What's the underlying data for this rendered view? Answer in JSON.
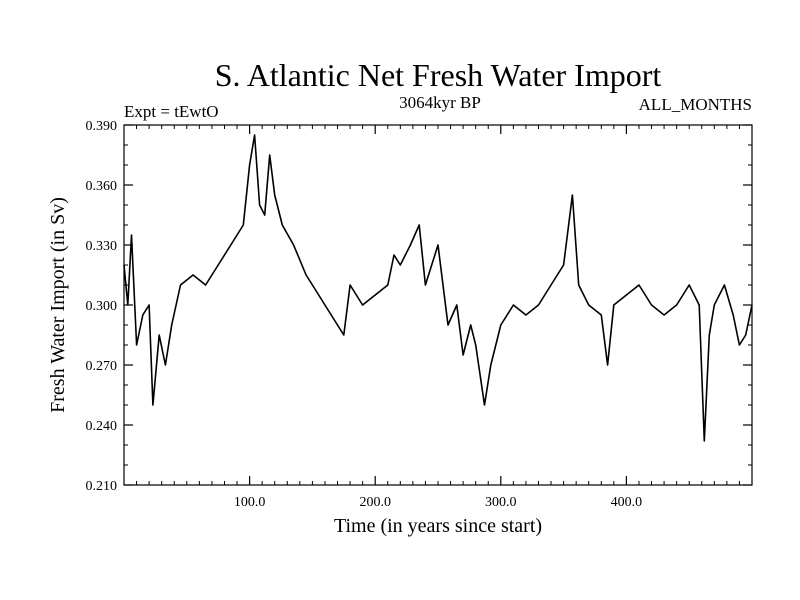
{
  "chart_data": {
    "type": "line",
    "title": "S. Atlantic Net Fresh Water Import",
    "subtitle_left": "Expt = tEwtO",
    "subtitle_center": "3064kyr BP",
    "subtitle_right": "ALL_MONTHS",
    "xlabel": "Time (in years since start)",
    "ylabel": "Fresh Water Import (in Sv)",
    "xlim": [
      0,
      500
    ],
    "ylim": [
      0.21,
      0.39
    ],
    "x_ticks": [
      100,
      200,
      300,
      400
    ],
    "x_tick_labels": [
      "100.0",
      "200.0",
      "300.0",
      "400.0"
    ],
    "y_ticks": [
      0.21,
      0.24,
      0.27,
      0.3,
      0.33,
      0.36,
      0.39
    ],
    "y_tick_labels": [
      "0.210",
      "0.240",
      "0.270",
      "0.300",
      "0.330",
      "0.360",
      "0.390"
    ],
    "series": [
      {
        "name": "S. Atlantic Net Fresh Water Import",
        "x": [
          0,
          3,
          6,
          10,
          15,
          20,
          23,
          28,
          33,
          38,
          45,
          55,
          65,
          75,
          85,
          95,
          100,
          104,
          108,
          112,
          116,
          120,
          126,
          135,
          145,
          155,
          165,
          175,
          180,
          190,
          200,
          210,
          215,
          220,
          228,
          235,
          240,
          245,
          250,
          258,
          265,
          270,
          276,
          280,
          287,
          292,
          300,
          310,
          320,
          330,
          340,
          350,
          357,
          362,
          370,
          380,
          385,
          390,
          400,
          410,
          420,
          430,
          440,
          450,
          458,
          462,
          466,
          470,
          478,
          485,
          490,
          495,
          500
        ],
        "values": [
          0.32,
          0.3,
          0.335,
          0.28,
          0.295,
          0.3,
          0.25,
          0.285,
          0.27,
          0.29,
          0.31,
          0.315,
          0.31,
          0.32,
          0.33,
          0.34,
          0.37,
          0.385,
          0.35,
          0.345,
          0.375,
          0.355,
          0.34,
          0.33,
          0.315,
          0.305,
          0.295,
          0.285,
          0.31,
          0.3,
          0.305,
          0.31,
          0.325,
          0.32,
          0.33,
          0.34,
          0.31,
          0.32,
          0.33,
          0.29,
          0.3,
          0.275,
          0.29,
          0.28,
          0.25,
          0.27,
          0.29,
          0.3,
          0.295,
          0.3,
          0.31,
          0.32,
          0.355,
          0.31,
          0.3,
          0.295,
          0.27,
          0.3,
          0.305,
          0.31,
          0.3,
          0.295,
          0.3,
          0.31,
          0.3,
          0.232,
          0.285,
          0.3,
          0.31,
          0.295,
          0.28,
          0.285,
          0.3
        ]
      }
    ]
  }
}
